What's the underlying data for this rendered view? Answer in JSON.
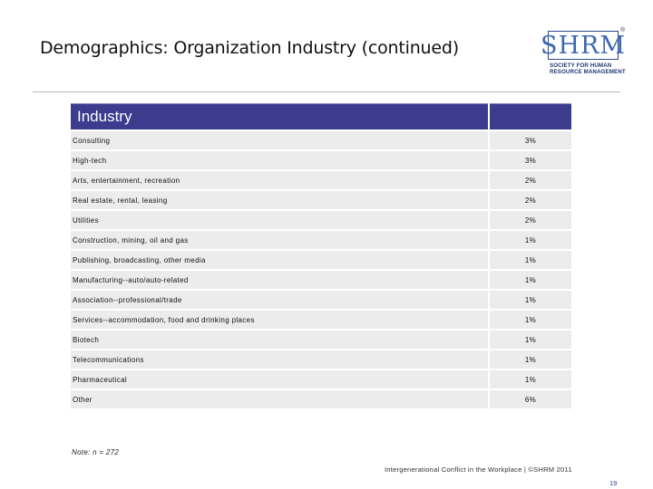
{
  "title": "Demographics: Organization Industry (continued)",
  "logo": {
    "text": "SHRM",
    "registered": "®",
    "subtitle_line1": "SOCIETY FOR HUMAN",
    "subtitle_line2": "RESOURCE MANAGEMENT"
  },
  "table": {
    "header_label": "Industry",
    "header_value": "",
    "rows": [
      {
        "label": "Consulting",
        "value": "3%"
      },
      {
        "label": "High-tech",
        "value": "3%"
      },
      {
        "label": "Arts, entertainment, recreation",
        "value": "2%"
      },
      {
        "label": "Real estate, rental, leasing",
        "value": "2%"
      },
      {
        "label": "Utilities",
        "value": "2%"
      },
      {
        "label": "Construction, mining, oil and gas",
        "value": "1%"
      },
      {
        "label": "Publishing, broadcasting, other media",
        "value": "1%"
      },
      {
        "label": "Manufacturing--auto/auto-related",
        "value": "1%"
      },
      {
        "label": "Association--professional/trade",
        "value": "1%"
      },
      {
        "label": "Services--accommodation, food and drinking places",
        "value": "1%"
      },
      {
        "label": "Biotech",
        "value": "1%"
      },
      {
        "label": "Telecommunications",
        "value": "1%"
      },
      {
        "label": "Pharmaceutical",
        "value": "1%"
      },
      {
        "label": "Other",
        "value": "6%"
      }
    ]
  },
  "note": "Note: n = 272",
  "footer": "Intergenerational Conflict in the Workplace | ©SHRM 2011",
  "page_number": "19"
}
